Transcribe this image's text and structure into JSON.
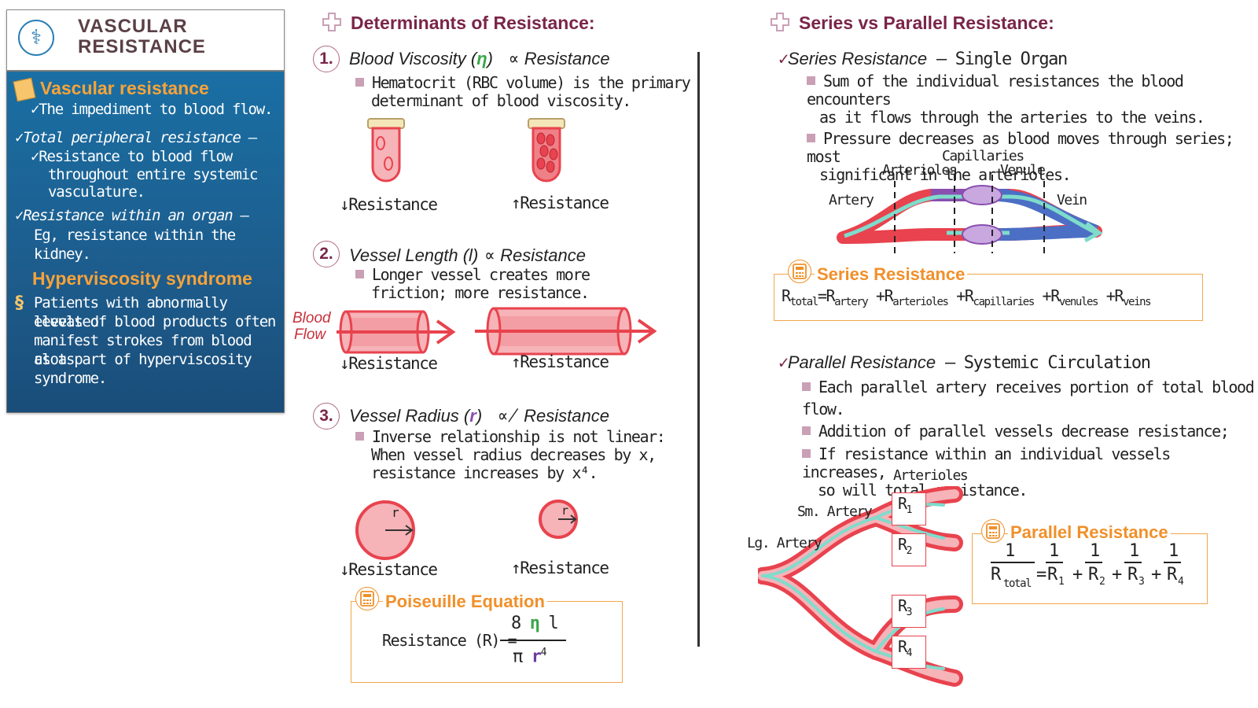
{
  "sidebar": {
    "title_line1": "VASCULAR",
    "title_line2": "RESISTANCE",
    "vr_heading": "Vascular resistance",
    "vr_def": "The impediment to blood flow.",
    "tpr_label": "Total peripheral resistance —",
    "tpr_def1": "Resistance to blood flow",
    "tpr_def2": "throughout entire systemic",
    "tpr_def3": "vasculature.",
    "organ_label": "Resistance within an organ —",
    "organ_def": "Eg, resistance within the kidney.",
    "hyper_heading": "Hyperviscosity syndrome",
    "hyper_l1": "Patients with abnormally elevated",
    "hyper_l2": "levels of blood products often",
    "hyper_l3": "manifest strokes from blood clots",
    "hyper_l4": "as a part of  hyperviscosity",
    "hyper_l5": "syndrome."
  },
  "determinants": {
    "heading": "Determinants of Resistance:",
    "d1": {
      "num": "1.",
      "label": "Blood Viscosity (",
      "symbol": "η",
      "close": ")",
      "prop": "∝",
      "res": "Resistance",
      "b1": "Hematocrit (RBC volume) is the primary",
      "b2": "determinant of blood viscosity.",
      "down": "↓Resistance",
      "up": "↑Resistance"
    },
    "d2": {
      "num": "2.",
      "label": "Vessel Length (l)",
      "prop": "∝",
      "res": "Resistance",
      "b1": "Longer vessel creates more",
      "b2": "friction; more resistance.",
      "flow1": "Blood",
      "flow2": "Flow",
      "down": "↓Resistance",
      "up": "↑Resistance"
    },
    "d3": {
      "num": "3.",
      "label": "Vessel Radius (",
      "symbol": "r",
      "close": ")",
      "prop": "∝̸",
      "res": "Resistance",
      "b1": "Inverse relationship is not linear:",
      "b2": "When vessel radius decreases by x,",
      "b3": "resistance increases by x⁴.",
      "r": "r",
      "down": "↓Resistance",
      "up": "↑Resistance"
    },
    "poiseuille": {
      "heading": "Poiseuille Equation",
      "lhs": "Resistance (R) =",
      "num_a": "8",
      "num_eta": "η",
      "num_l": "l",
      "den_pi": "π",
      "den_r": "r",
      "den_exp": "4"
    }
  },
  "series_parallel": {
    "heading": "Series vs Parallel Resistance:",
    "series_label": "Series Resistance",
    "series_dash": "— Single Organ",
    "s_b1a": "Sum of the individual resistances the blood encounters",
    "s_b1b": "as it flows through the arteries to the veins.",
    "s_b2a": "Pressure decreases as blood moves through series; most",
    "s_b2b": "significant in the arterioles.",
    "diag": {
      "capillaries": "Capillaries",
      "arterioles": "Arterioles",
      "venule": "Venule",
      "artery": "Artery",
      "vein": "Vein"
    },
    "series_eq": {
      "heading": "Series Resistance",
      "r": "R",
      "total": "total",
      "eq": "=",
      "plus": "+",
      "terms": [
        "artery",
        "arterioles",
        "capillaries",
        "venules",
        "veins"
      ]
    },
    "parallel_label": "Parallel Resistance",
    "parallel_dash": "— Systemic Circulation",
    "p_b1": "Each parallel artery receives portion of total blood flow.",
    "p_b2": "Addition of parallel vessels decrease resistance;",
    "p_b3a": "If resistance within an individual vessels increases,",
    "p_b3b": "so will total resistance.",
    "pdiag": {
      "arterioles": "Arterioles",
      "sm_artery": "Sm. Artery",
      "lg_artery": "Lg. Artery",
      "r_labels": [
        "R1",
        "R2",
        "R3",
        "R4"
      ]
    },
    "parallel_eq": {
      "heading": "Parallel Resistance",
      "one": "1",
      "r": "R",
      "total": "total",
      "eq": "=",
      "plus": "+",
      "subs": [
        "1",
        "2",
        "3",
        "4"
      ]
    }
  },
  "colors": {
    "vessel_red": "#e8434e",
    "vessel_pink": "#f6b3b8",
    "flow_teal": "#7fdccc",
    "vein_blue": "#4b6fc4",
    "accent_orange": "#f0902a",
    "maroon": "#7a2548",
    "purple": "#8a4fb0"
  }
}
